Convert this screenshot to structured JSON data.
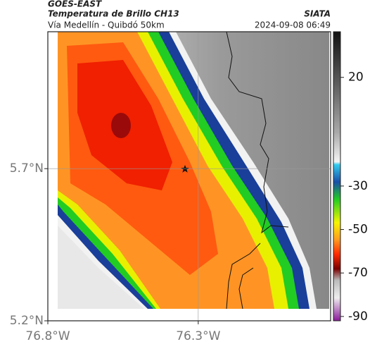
{
  "header": {
    "source": "GOES-EAST",
    "title": "Temperatura de Brillo CH13",
    "subtitle": "Vía Medellín - Quibdó 50km",
    "org": "SIATA",
    "datetime": "2024-09-08 06:49"
  },
  "map": {
    "xlim": [
      -76.8,
      -75.86
    ],
    "ylim": [
      5.2,
      6.15
    ],
    "xticks": [
      {
        "value": -76.8,
        "label": "76.8°W"
      },
      {
        "value": -76.3,
        "label": "76.3°W"
      }
    ],
    "yticks": [
      {
        "value": 5.2,
        "label": "5.2°N"
      },
      {
        "value": 5.7,
        "label": "5.7°N"
      }
    ]
  },
  "colorbar": {
    "lim": [
      41,
      -92
    ],
    "ticks": [
      20,
      -30,
      -50,
      -70,
      -90
    ]
  }
}
